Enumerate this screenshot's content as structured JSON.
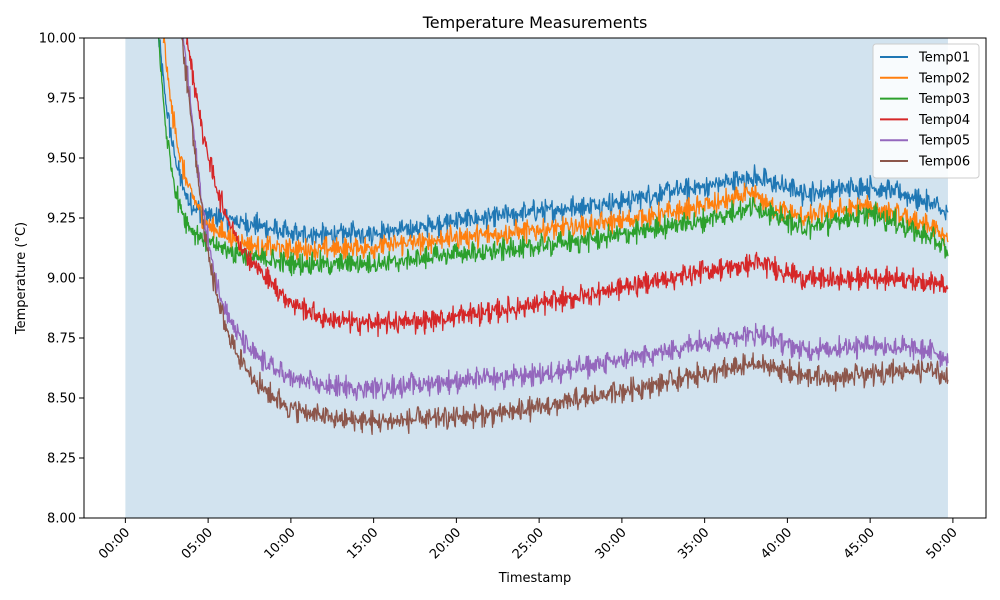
{
  "chart_data": {
    "type": "line",
    "title": "Temperature Measurements",
    "xlabel": "Timestamp",
    "ylabel": "Temperature (°C)",
    "xlim_minutes": [
      -2.5,
      52.0
    ],
    "ylim": [
      8.0,
      10.0
    ],
    "x_ticks": [
      "00:00",
      "05:00",
      "10:00",
      "15:00",
      "20:00",
      "25:00",
      "30:00",
      "35:00",
      "40:00",
      "45:00",
      "50:00"
    ],
    "y_ticks": [
      "8.00",
      "8.25",
      "8.50",
      "8.75",
      "9.00",
      "9.25",
      "9.50",
      "9.75",
      "10.00"
    ],
    "shaded_span_minutes": [
      0,
      49.7
    ],
    "shaded_color": "#d2e3ef",
    "grid": false,
    "legend_position": "top-right",
    "x_unit": "minutes since 00:00",
    "series": [
      {
        "name": "Temp01",
        "color": "#1f77b4",
        "noise": 0.035,
        "x": [
          2.0,
          2.5,
          3.0,
          3.5,
          4.0,
          5.0,
          6.0,
          8.0,
          10.0,
          12.0,
          15.0,
          18.0,
          20.0,
          22.0,
          25.0,
          28.0,
          30.0,
          33.0,
          35.0,
          38.0,
          39.0,
          41.0,
          43.0,
          45.0,
          47.0,
          49.0,
          49.7
        ],
        "y": [
          10.0,
          9.7,
          9.5,
          9.37,
          9.3,
          9.26,
          9.25,
          9.22,
          9.18,
          9.18,
          9.19,
          9.21,
          9.24,
          9.25,
          9.28,
          9.3,
          9.32,
          9.36,
          9.38,
          9.42,
          9.4,
          9.35,
          9.37,
          9.38,
          9.35,
          9.3,
          9.25
        ]
      },
      {
        "name": "Temp02",
        "color": "#ff7f0e",
        "noise": 0.035,
        "x": [
          2.3,
          2.8,
          3.3,
          3.8,
          4.5,
          5.0,
          6.0,
          7.0,
          8.0,
          10.0,
          12.0,
          15.0,
          18.0,
          20.0,
          22.0,
          25.0,
          28.0,
          30.0,
          33.0,
          35.0,
          38.0,
          39.0,
          41.0,
          43.0,
          45.0,
          47.0,
          49.0,
          49.7
        ],
        "y": [
          10.0,
          9.7,
          9.5,
          9.38,
          9.28,
          9.22,
          9.18,
          9.15,
          9.13,
          9.12,
          9.12,
          9.13,
          9.15,
          9.17,
          9.18,
          9.2,
          9.22,
          9.24,
          9.27,
          9.3,
          9.35,
          9.3,
          9.25,
          9.28,
          9.3,
          9.25,
          9.2,
          9.15
        ]
      },
      {
        "name": "Temp03",
        "color": "#2ca02c",
        "noise": 0.035,
        "x": [
          2.0,
          2.4,
          2.8,
          3.2,
          3.6,
          4.0,
          5.0,
          6.0,
          8.0,
          10.0,
          12.0,
          15.0,
          18.0,
          20.0,
          22.0,
          25.0,
          28.0,
          30.0,
          33.0,
          35.0,
          38.0,
          39.0,
          41.0,
          43.0,
          45.0,
          47.0,
          49.0,
          49.7
        ],
        "y": [
          10.0,
          9.65,
          9.45,
          9.32,
          9.25,
          9.2,
          9.15,
          9.12,
          9.08,
          9.06,
          9.06,
          9.06,
          9.08,
          9.1,
          9.11,
          9.13,
          9.16,
          9.18,
          9.22,
          9.24,
          9.3,
          9.27,
          9.2,
          9.24,
          9.27,
          9.22,
          9.15,
          9.1
        ]
      },
      {
        "name": "Temp04",
        "color": "#d62728",
        "noise": 0.035,
        "x": [
          3.7,
          4.2,
          4.7,
          5.2,
          5.7,
          6.5,
          7.5,
          8.5,
          10.0,
          12.0,
          15.0,
          18.0,
          20.0,
          22.0,
          25.0,
          28.0,
          30.0,
          33.0,
          35.0,
          38.0,
          39.0,
          41.0,
          43.0,
          45.0,
          47.0,
          49.0,
          49.7
        ],
        "y": [
          10.0,
          9.8,
          9.6,
          9.45,
          9.33,
          9.2,
          9.08,
          9.0,
          8.9,
          8.83,
          8.81,
          8.82,
          8.84,
          8.86,
          8.89,
          8.93,
          8.96,
          9.0,
          9.03,
          9.06,
          9.05,
          9.0,
          8.99,
          9.0,
          9.0,
          8.98,
          8.95
        ]
      },
      {
        "name": "Temp05",
        "color": "#9467bd",
        "noise": 0.035,
        "x": [
          3.5,
          3.9,
          4.3,
          4.7,
          5.2,
          5.7,
          6.5,
          7.5,
          8.5,
          10.0,
          12.0,
          15.0,
          18.0,
          20.0,
          22.0,
          25.0,
          28.0,
          30.0,
          33.0,
          35.0,
          38.0,
          39.0,
          41.0,
          43.0,
          45.0,
          47.0,
          49.0,
          49.7
        ],
        "y": [
          10.0,
          9.75,
          9.5,
          9.28,
          9.08,
          8.93,
          8.8,
          8.7,
          8.64,
          8.58,
          8.55,
          8.54,
          8.56,
          8.57,
          8.58,
          8.6,
          8.63,
          8.66,
          8.7,
          8.74,
          8.77,
          8.75,
          8.7,
          8.71,
          8.72,
          8.71,
          8.69,
          8.66
        ]
      },
      {
        "name": "Temp06",
        "color": "#8c564b",
        "noise": 0.035,
        "x": [
          3.4,
          3.8,
          4.2,
          4.6,
          5.0,
          5.5,
          6.0,
          7.0,
          8.0,
          9.0,
          10.0,
          12.0,
          15.0,
          18.0,
          20.0,
          22.0,
          25.0,
          28.0,
          30.0,
          33.0,
          35.0,
          38.0,
          39.0,
          41.0,
          43.0,
          45.0,
          47.0,
          49.0,
          49.7
        ],
        "y": [
          10.0,
          9.78,
          9.52,
          9.3,
          9.1,
          8.93,
          8.8,
          8.65,
          8.56,
          8.5,
          8.46,
          8.42,
          8.4,
          8.41,
          8.42,
          8.43,
          8.46,
          8.5,
          8.53,
          8.57,
          8.6,
          8.64,
          8.63,
          8.59,
          8.58,
          8.6,
          8.62,
          8.61,
          8.58
        ]
      }
    ]
  }
}
